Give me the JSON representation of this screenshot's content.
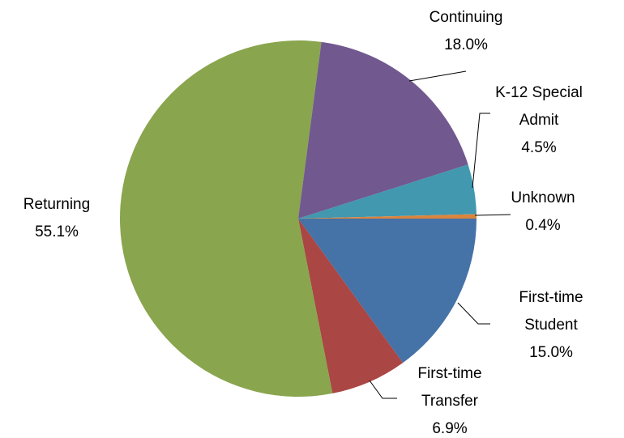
{
  "chart_data": {
    "type": "pie",
    "categories": [
      "First-time Student",
      "First-time Transfer",
      "Returning",
      "Continuing",
      "K-12 Special Admit",
      "Unknown"
    ],
    "values": [
      15.0,
      6.9,
      55.1,
      18.0,
      4.5,
      0.4
    ],
    "value_labels": [
      "15.0%",
      "6.9%",
      "55.1%",
      "18.0%",
      "4.5%",
      "0.4%"
    ],
    "colors": [
      "#4572a7",
      "#aa4643",
      "#89a54e",
      "#71588f",
      "#4198af",
      "#db843d"
    ]
  }
}
